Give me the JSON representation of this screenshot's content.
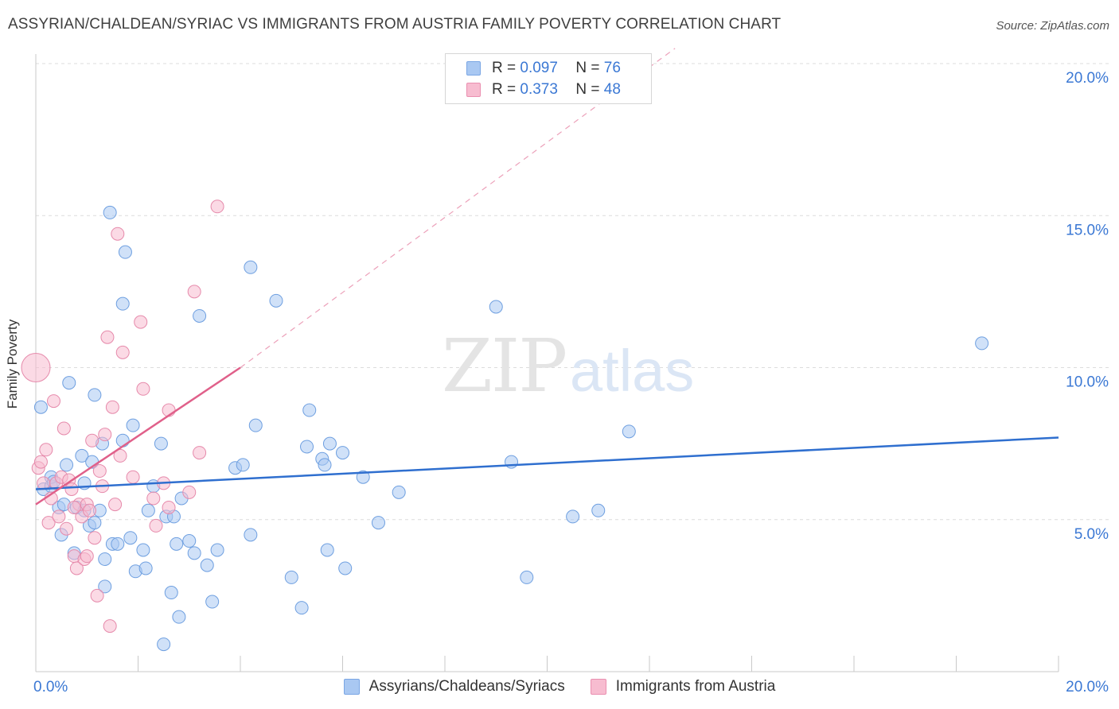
{
  "title": "ASSYRIAN/CHALDEAN/SYRIAC VS IMMIGRANTS FROM AUSTRIA FAMILY POVERTY CORRELATION CHART",
  "source": "Source: ZipAtlas.com",
  "watermark": {
    "zip": "ZIP",
    "atlas": "atlas"
  },
  "legend_top": [
    {
      "r_label": "R =",
      "r_value": "0.097",
      "n_label": "N =",
      "n_value": "76",
      "color": "#a9c8f2",
      "border": "#7aa6e4"
    },
    {
      "r_label": "R =",
      "r_value": "0.373",
      "n_label": "N =",
      "n_value": "48",
      "color": "#f7bcd0",
      "border": "#ea8fb0"
    }
  ],
  "legend_bottom": [
    {
      "label": "Assyrians/Chaldeans/Syriacs",
      "color": "#a9c8f2",
      "border": "#7aa6e4"
    },
    {
      "label": "Immigrants from Austria",
      "color": "#f7bcd0",
      "border": "#ea8fb0"
    }
  ],
  "chart_data": {
    "type": "scatter",
    "title": "ASSYRIAN/CHALDEAN/SYRIAC VS IMMIGRANTS FROM AUSTRIA FAMILY POVERTY CORRELATION CHART",
    "xlabel": "",
    "ylabel": "Family Poverty",
    "xlim": [
      0,
      20
    ],
    "ylim": [
      0,
      20
    ],
    "x_tick_labels": [
      "0.0%",
      "20.0%"
    ],
    "y_tick_values": [
      5,
      10,
      15,
      20
    ],
    "y_tick_labels": [
      "5.0%",
      "10.0%",
      "15.0%",
      "20.0%"
    ],
    "grid": true,
    "series": [
      {
        "name": "Assyrians/Chaldeans/Syriacs",
        "color": "#a9c8f2",
        "edge": "#6e9fe0",
        "trend_color": "#2f6fcf",
        "trend": {
          "x": [
            0,
            20
          ],
          "y": [
            6.0,
            7.7
          ]
        },
        "points": [
          [
            0.1,
            8.7
          ],
          [
            0.15,
            6.0
          ],
          [
            0.3,
            6.1
          ],
          [
            0.3,
            6.4
          ],
          [
            0.45,
            5.4
          ],
          [
            0.5,
            4.5
          ],
          [
            0.55,
            5.5
          ],
          [
            0.6,
            6.8
          ],
          [
            0.65,
            9.5
          ],
          [
            0.75,
            3.9
          ],
          [
            0.8,
            5.4
          ],
          [
            0.9,
            7.1
          ],
          [
            0.95,
            6.2
          ],
          [
            1.05,
            4.8
          ],
          [
            1.1,
            6.9
          ],
          [
            1.15,
            9.1
          ],
          [
            1.25,
            5.3
          ],
          [
            1.3,
            7.5
          ],
          [
            1.35,
            2.8
          ],
          [
            1.35,
            3.7
          ],
          [
            1.45,
            15.1
          ],
          [
            1.5,
            4.2
          ],
          [
            1.6,
            4.2
          ],
          [
            1.7,
            7.6
          ],
          [
            1.7,
            12.1
          ],
          [
            1.75,
            13.8
          ],
          [
            1.85,
            4.4
          ],
          [
            1.9,
            8.1
          ],
          [
            1.95,
            3.3
          ],
          [
            2.1,
            4.0
          ],
          [
            2.15,
            3.4
          ],
          [
            2.2,
            5.3
          ],
          [
            2.3,
            6.1
          ],
          [
            2.45,
            7.5
          ],
          [
            2.5,
            0.9
          ],
          [
            2.55,
            5.1
          ],
          [
            2.65,
            2.6
          ],
          [
            2.7,
            5.1
          ],
          [
            2.8,
            1.8
          ],
          [
            2.85,
            5.7
          ],
          [
            3.0,
            4.3
          ],
          [
            3.1,
            3.9
          ],
          [
            3.2,
            11.7
          ],
          [
            3.35,
            3.5
          ],
          [
            3.45,
            2.3
          ],
          [
            3.55,
            4.0
          ],
          [
            3.9,
            6.7
          ],
          [
            4.05,
            6.8
          ],
          [
            4.2,
            4.5
          ],
          [
            4.3,
            8.1
          ],
          [
            4.2,
            13.3
          ],
          [
            4.7,
            12.2
          ],
          [
            5.0,
            3.1
          ],
          [
            5.2,
            2.1
          ],
          [
            5.3,
            7.4
          ],
          [
            5.35,
            8.6
          ],
          [
            5.6,
            7.0
          ],
          [
            5.65,
            6.8
          ],
          [
            5.7,
            4.0
          ],
          [
            5.75,
            7.5
          ],
          [
            6.0,
            7.2
          ],
          [
            6.05,
            3.4
          ],
          [
            6.4,
            6.4
          ],
          [
            6.7,
            4.9
          ],
          [
            7.1,
            5.9
          ],
          [
            9.0,
            12.0
          ],
          [
            9.3,
            6.9
          ],
          [
            9.6,
            3.1
          ],
          [
            10.5,
            5.1
          ],
          [
            11.0,
            5.3
          ],
          [
            11.6,
            7.9
          ],
          [
            18.5,
            10.8
          ],
          [
            1.15,
            4.9
          ],
          [
            2.75,
            4.2
          ],
          [
            0.35,
            6.25
          ],
          [
            0.95,
            5.3
          ]
        ]
      },
      {
        "name": "Immigrants from Austria",
        "color": "#f7bcd0",
        "edge": "#e68aab",
        "trend_color": "#e0608a",
        "trend": {
          "x": [
            0,
            4.0
          ],
          "y": [
            5.5,
            10.0
          ]
        },
        "trend_extended": {
          "x": [
            4.0,
            12.5
          ],
          "y": [
            10.0,
            20.5
          ]
        },
        "points": [
          [
            0.05,
            6.7
          ],
          [
            0.1,
            6.9
          ],
          [
            0.15,
            6.2
          ],
          [
            0.2,
            7.3
          ],
          [
            0.25,
            4.9
          ],
          [
            0.3,
            5.7
          ],
          [
            0.35,
            8.9
          ],
          [
            0.4,
            6.2
          ],
          [
            0.45,
            5.1
          ],
          [
            0.5,
            6.4
          ],
          [
            0.55,
            8.0
          ],
          [
            0.6,
            4.7
          ],
          [
            0.65,
            6.3
          ],
          [
            0.7,
            6.0
          ],
          [
            0.75,
            3.8
          ],
          [
            0.8,
            3.4
          ],
          [
            0.85,
            5.5
          ],
          [
            0.9,
            5.1
          ],
          [
            0.95,
            3.7
          ],
          [
            1.0,
            5.5
          ],
          [
            1.0,
            3.8
          ],
          [
            1.05,
            5.3
          ],
          [
            1.1,
            7.6
          ],
          [
            1.15,
            4.4
          ],
          [
            1.2,
            2.5
          ],
          [
            1.25,
            6.6
          ],
          [
            1.3,
            6.1
          ],
          [
            1.35,
            7.8
          ],
          [
            1.4,
            11.0
          ],
          [
            1.45,
            1.5
          ],
          [
            1.5,
            8.7
          ],
          [
            1.55,
            5.5
          ],
          [
            1.6,
            14.4
          ],
          [
            1.65,
            7.1
          ],
          [
            1.7,
            10.5
          ],
          [
            1.9,
            6.4
          ],
          [
            2.05,
            11.5
          ],
          [
            2.1,
            9.3
          ],
          [
            2.3,
            5.7
          ],
          [
            2.35,
            4.8
          ],
          [
            2.5,
            6.2
          ],
          [
            2.6,
            5.4
          ],
          [
            2.6,
            8.6
          ],
          [
            3.0,
            5.9
          ],
          [
            3.1,
            12.5
          ],
          [
            3.2,
            7.2
          ],
          [
            3.55,
            15.3
          ],
          [
            0.75,
            5.4
          ]
        ],
        "large_point": [
          0.0,
          10.0
        ]
      }
    ]
  }
}
